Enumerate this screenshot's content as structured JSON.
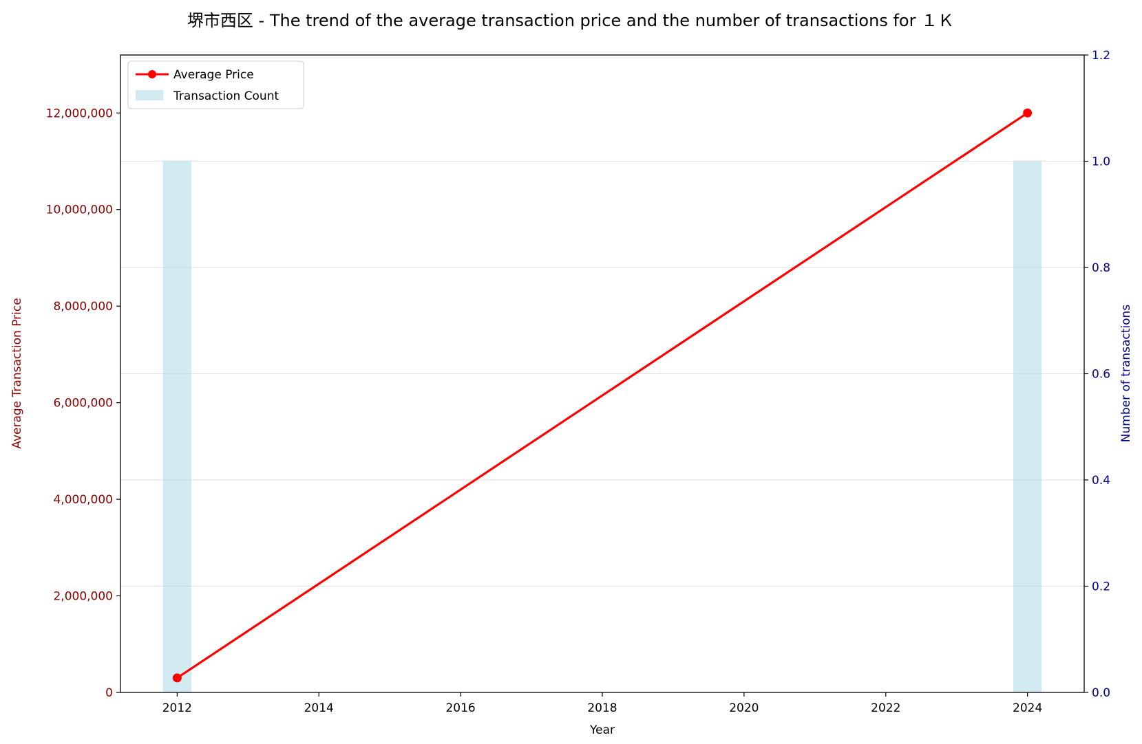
{
  "chart_data": {
    "type": "bar+line",
    "title": "堺市西区 - The trend of the average transaction price and the number of transactions for １Ｋ",
    "xlabel": "Year",
    "ylabel_left": "Average Transaction Price",
    "ylabel_right": "Number of transactions",
    "x_ticks": [
      "2012",
      "2014",
      "2016",
      "2018",
      "2020",
      "2022",
      "2024"
    ],
    "xlim": [
      2011.2,
      2024.8
    ],
    "ylim_left": [
      0,
      13200000
    ],
    "ylim_right": [
      0,
      1.2
    ],
    "y_left_ticks": [
      0,
      2000000,
      4000000,
      6000000,
      8000000,
      10000000,
      12000000
    ],
    "y_left_tick_labels": [
      "0",
      "2,000,000",
      "4,000,000",
      "6,000,000",
      "8,000,000",
      "10,000,000",
      "12,000,000"
    ],
    "y_right_ticks": [
      0.0,
      0.2,
      0.4,
      0.6,
      0.8,
      1.0,
      1.2
    ],
    "y_right_tick_labels": [
      "0.0",
      "0.2",
      "0.4",
      "0.6",
      "0.8",
      "1.0",
      "1.2"
    ],
    "grid": "horizontal",
    "legend_placement": "top-left",
    "series": [
      {
        "name": "Average Price",
        "type": "line",
        "axis": "left",
        "color": "#ff0000",
        "x": [
          2012,
          2024
        ],
        "values": [
          300000,
          12000000
        ]
      },
      {
        "name": "Transaction Count",
        "type": "bar",
        "axis": "right",
        "color": "#add8e6",
        "x": [
          2012,
          2024
        ],
        "values": [
          1,
          1
        ]
      }
    ]
  }
}
